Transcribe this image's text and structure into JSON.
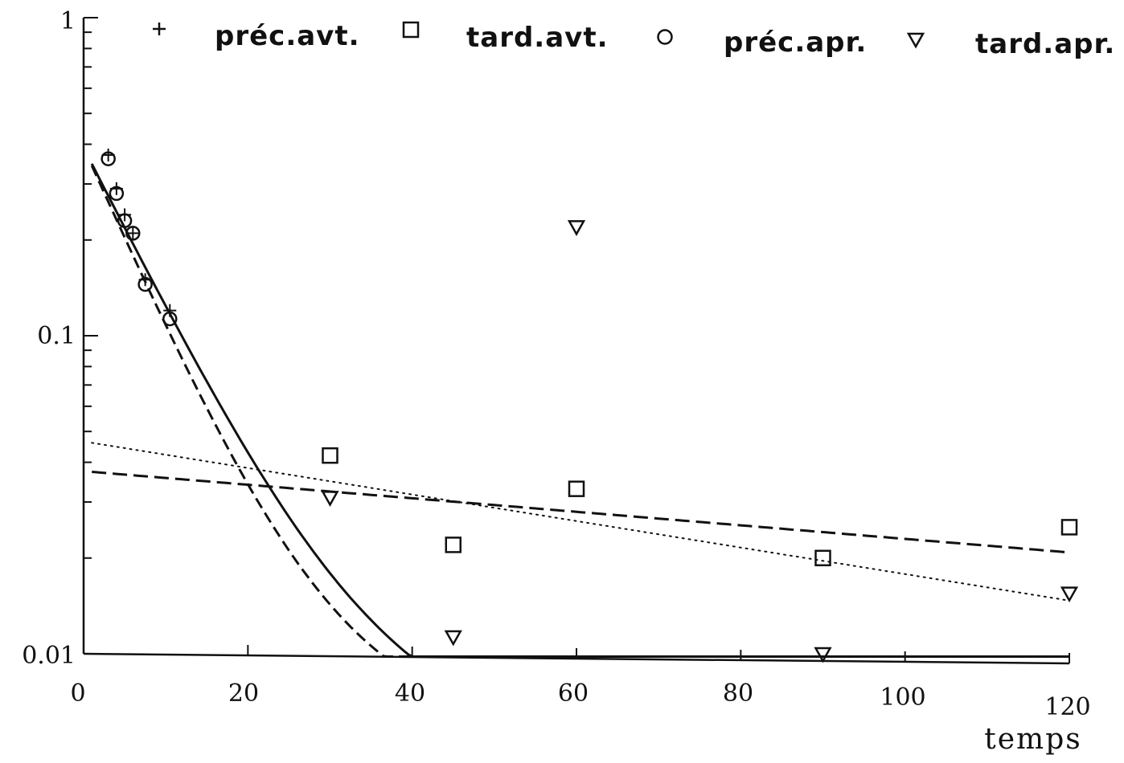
{
  "chart_data": {
    "type": "scatter",
    "title": "",
    "xlabel": "temps",
    "ylabel": "",
    "xlim": [
      0,
      120
    ],
    "ylim": [
      0.01,
      1
    ],
    "yscale": "log",
    "grid": false,
    "legend_position": "top",
    "x_ticks": [
      "0",
      "20",
      "40",
      "60",
      "80",
      "100",
      "120"
    ],
    "y_ticks": [
      "1",
      "0.1",
      "0.01"
    ],
    "series": [
      {
        "name": "préc.avt.",
        "marker": "plus",
        "points": [
          {
            "x": 3,
            "y": 0.37
          },
          {
            "x": 4,
            "y": 0.29
          },
          {
            "x": 5,
            "y": 0.24
          },
          {
            "x": 6,
            "y": 0.21
          },
          {
            "x": 7.5,
            "y": 0.15
          },
          {
            "x": 10.5,
            "y": 0.12
          }
        ]
      },
      {
        "name": "tard.avt.",
        "marker": "square",
        "points": [
          {
            "x": 30,
            "y": 0.042
          },
          {
            "x": 45,
            "y": 0.022
          },
          {
            "x": 60,
            "y": 0.033
          },
          {
            "x": 90,
            "y": 0.02
          },
          {
            "x": 120,
            "y": 0.025
          }
        ]
      },
      {
        "name": "préc.apr.",
        "marker": "circle",
        "points": [
          {
            "x": 3,
            "y": 0.36
          },
          {
            "x": 4,
            "y": 0.28
          },
          {
            "x": 5,
            "y": 0.23
          },
          {
            "x": 6,
            "y": 0.21
          },
          {
            "x": 7.5,
            "y": 0.145
          },
          {
            "x": 10.5,
            "y": 0.113
          }
        ]
      },
      {
        "name": "tard.apr.",
        "marker": "triangle-down",
        "points": [
          {
            "x": 30,
            "y": 0.031
          },
          {
            "x": 45,
            "y": 0.0113
          },
          {
            "x": 60,
            "y": 0.22
          },
          {
            "x": 90,
            "y": 0.01
          },
          {
            "x": 120,
            "y": 0.0155
          }
        ]
      }
    ],
    "fits": [
      {
        "style": "solid",
        "form": "exp2",
        "a": 0.38,
        "k": 0.12,
        "b": 0.0105,
        "m": 0.0055
      },
      {
        "style": "dashed",
        "form": "exp2",
        "a": 0.38,
        "k": 0.135,
        "b": 0.0105,
        "m": 0.005
      },
      {
        "style": "dotted",
        "form": "exp",
        "a": 0.0465,
        "m": 0.0096
      },
      {
        "style": "long-dashed",
        "form": "exp",
        "a": 0.0375,
        "m": 0.0049
      }
    ]
  },
  "colors": {
    "ink": "#111111",
    "background": "#ffffff"
  }
}
